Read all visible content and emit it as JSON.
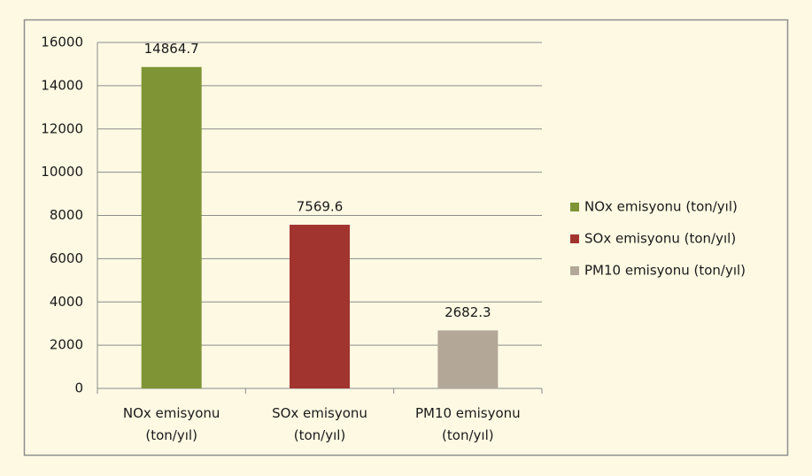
{
  "chart_data": {
    "type": "bar",
    "categories": [
      "NOx  emisyonu (ton/yıl)",
      "SOx  emisyonu (ton/yıl)",
      "PM10  emisyonu (ton/yıl)"
    ],
    "values": [
      14864.7,
      7569.6,
      2682.3
    ],
    "colors": [
      "#7f9434",
      "#a1342f",
      "#b3a898"
    ],
    "ylim": [
      0,
      16000
    ],
    "yticks": [
      0,
      2000,
      4000,
      6000,
      8000,
      10000,
      12000,
      14000,
      16000
    ],
    "grid": true,
    "legend": "right",
    "data_labels": true
  }
}
